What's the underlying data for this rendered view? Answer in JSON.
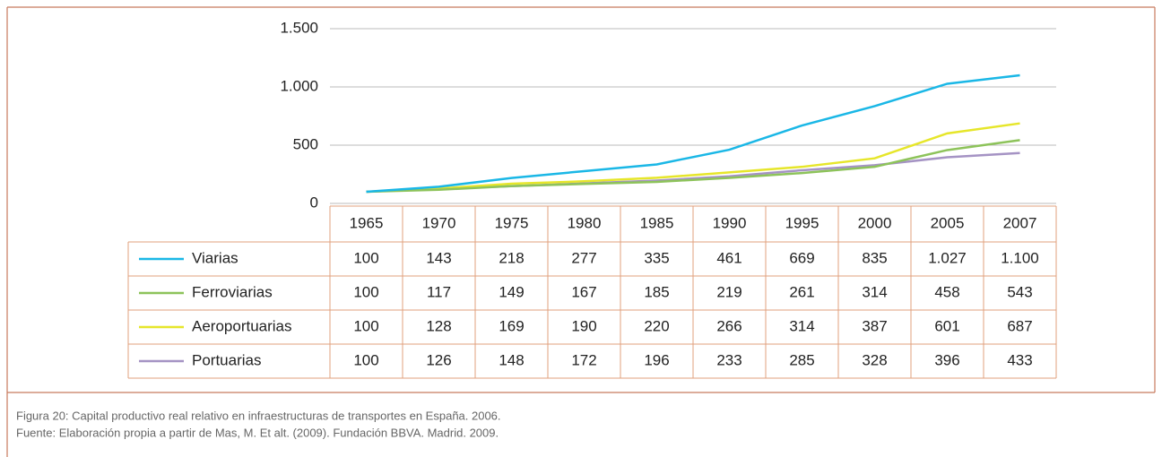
{
  "chart_data": {
    "type": "line",
    "categories": [
      "1965",
      "1970",
      "1975",
      "1980",
      "1985",
      "1990",
      "1995",
      "2000",
      "2005",
      "2007"
    ],
    "series": [
      {
        "name": "Viarias",
        "color": "#1ab7e6",
        "values": [
          100,
          143,
          218,
          277,
          335,
          461,
          669,
          835,
          1027,
          1100
        ],
        "value_labels": [
          "100",
          "143",
          "218",
          "277",
          "335",
          "461",
          "669",
          "835",
          "1.027",
          "1.100"
        ]
      },
      {
        "name": "Ferroviarias",
        "color": "#8dc35a",
        "values": [
          100,
          117,
          149,
          167,
          185,
          219,
          261,
          314,
          458,
          543
        ]
      },
      {
        "name": "Aeroportuarias",
        "color": "#e6e62a",
        "values": [
          100,
          128,
          169,
          190,
          220,
          266,
          314,
          387,
          601,
          687
        ]
      },
      {
        "name": "Portuarias",
        "color": "#a593c4",
        "values": [
          100,
          126,
          148,
          172,
          196,
          233,
          285,
          328,
          396,
          433
        ]
      }
    ],
    "ylim": [
      0,
      1500
    ],
    "yticks": [
      0,
      500,
      {
        "value": 1000,
        "label": "1.000"
      },
      {
        "value": 1500,
        "label": "1.500"
      }
    ],
    "grid": true,
    "caption": "Figura 20: Capital productivo real relativo en infraestructuras de transportes en España. 2006.",
    "source": "Fuente: Elaboración propia a partir de Mas, M. Et alt. (2009). Fundación BBVA. Madrid. 2009."
  }
}
